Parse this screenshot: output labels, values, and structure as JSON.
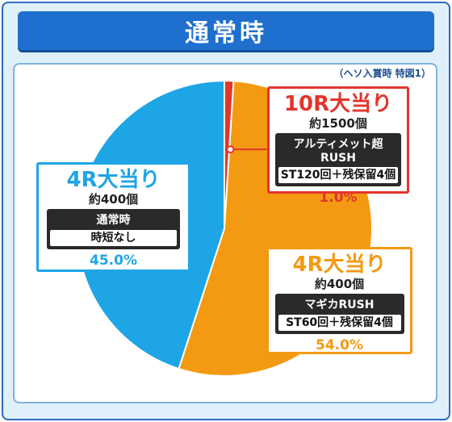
{
  "title": "通常時",
  "note": "（ヘソ入賞時 特図1）",
  "colors": {
    "blue": "#1ea5e6",
    "orange": "#f39a12",
    "red": "#e2352d",
    "frame": "#2b6bbf"
  },
  "chart_data": {
    "type": "pie",
    "slices": [
      {
        "name": "10R大当り",
        "value": 1.0,
        "color": "#e2352d"
      },
      {
        "name": "4R大当り（マギカRUSH）",
        "value": 54.0,
        "color": "#f39a12"
      },
      {
        "name": "4R大当り（通常時）",
        "value": 45.0,
        "color": "#1ea5e6"
      }
    ]
  },
  "labels": {
    "r10": {
      "title": "10R大当り",
      "balls": "約1500個",
      "mode": "アルティメット超RUSH",
      "detail": "ST120回＋残保留4個",
      "pct": "1.0%"
    },
    "r4_left": {
      "title": "4R大当り",
      "balls": "約400個",
      "mode": "通常時",
      "detail": "時短なし",
      "pct": "45.0%"
    },
    "r4_right": {
      "title": "4R大当り",
      "balls": "約400個",
      "mode": "マギカRUSH",
      "detail": "ST60回＋残保留4個",
      "pct": "54.0%"
    }
  }
}
